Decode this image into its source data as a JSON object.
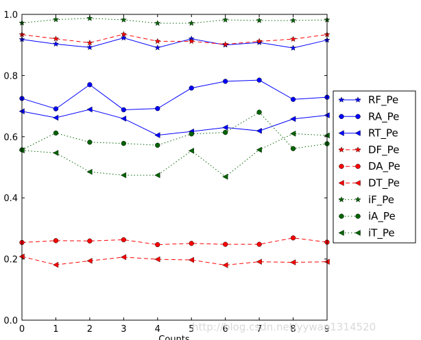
{
  "chart_data": {
    "type": "line",
    "title": "",
    "xlabel": "Counts",
    "ylabel": "",
    "xlim": [
      0,
      9
    ],
    "ylim": [
      0.0,
      1.0
    ],
    "x": [
      0,
      1,
      2,
      3,
      4,
      5,
      6,
      7,
      8,
      9
    ],
    "x_ticks": [
      "0",
      "1",
      "2",
      "3",
      "4",
      "5",
      "6",
      "7",
      "8",
      "9"
    ],
    "y_ticks": [
      "0.0",
      "0.2",
      "0.4",
      "0.6",
      "0.8",
      "1.0"
    ],
    "y_tick_values": [
      0.0,
      0.2,
      0.4,
      0.6,
      0.8,
      1.0
    ],
    "grid": false,
    "legend_position": "right",
    "series": [
      {
        "name": "RF_Pe",
        "color": "#0000ff",
        "linestyle": "solid",
        "marker": "star",
        "values": [
          0.918,
          0.903,
          0.892,
          0.923,
          0.891,
          0.92,
          0.9,
          0.908,
          0.89,
          0.916
        ]
      },
      {
        "name": "RA_Pe",
        "color": "#0000ff",
        "linestyle": "solid",
        "marker": "circle",
        "values": [
          0.725,
          0.691,
          0.77,
          0.688,
          0.692,
          0.759,
          0.781,
          0.785,
          0.722,
          0.729
        ]
      },
      {
        "name": "RT_Pe",
        "color": "#0000ff",
        "linestyle": "solid",
        "marker": "triangle-left",
        "values": [
          0.683,
          0.662,
          0.689,
          0.659,
          0.605,
          0.617,
          0.63,
          0.619,
          0.658,
          0.67
        ]
      },
      {
        "name": "DF_Pe",
        "color": "#ff0000",
        "linestyle": "dashed",
        "marker": "star",
        "values": [
          0.934,
          0.92,
          0.907,
          0.935,
          0.912,
          0.912,
          0.902,
          0.912,
          0.919,
          0.934
        ]
      },
      {
        "name": "DA_Pe",
        "color": "#ff0000",
        "linestyle": "dashed",
        "marker": "circle",
        "values": [
          0.254,
          0.26,
          0.259,
          0.263,
          0.247,
          0.251,
          0.248,
          0.248,
          0.269,
          0.255
        ]
      },
      {
        "name": "DT_Pe",
        "color": "#ff0000",
        "linestyle": "dashed",
        "marker": "triangle-left",
        "values": [
          0.208,
          0.181,
          0.194,
          0.206,
          0.199,
          0.197,
          0.18,
          0.191,
          0.189,
          0.191
        ]
      },
      {
        "name": "iF_Pe",
        "color": "#006400",
        "linestyle": "dotted",
        "marker": "star",
        "values": [
          0.972,
          0.983,
          0.987,
          0.982,
          0.971,
          0.971,
          0.982,
          0.98,
          0.98,
          0.982
        ]
      },
      {
        "name": "iA_Pe",
        "color": "#006400",
        "linestyle": "dotted",
        "marker": "circle",
        "values": [
          0.557,
          0.612,
          0.582,
          0.578,
          0.572,
          0.609,
          0.614,
          0.68,
          0.561,
          0.577
        ]
      },
      {
        "name": "iT_Pe",
        "color": "#006400",
        "linestyle": "dotted",
        "marker": "triangle-left",
        "values": [
          0.555,
          0.547,
          0.485,
          0.474,
          0.474,
          0.554,
          0.469,
          0.557,
          0.61,
          0.604
        ]
      }
    ]
  },
  "watermark": "http://blog.csdn.net/yywan1314520"
}
